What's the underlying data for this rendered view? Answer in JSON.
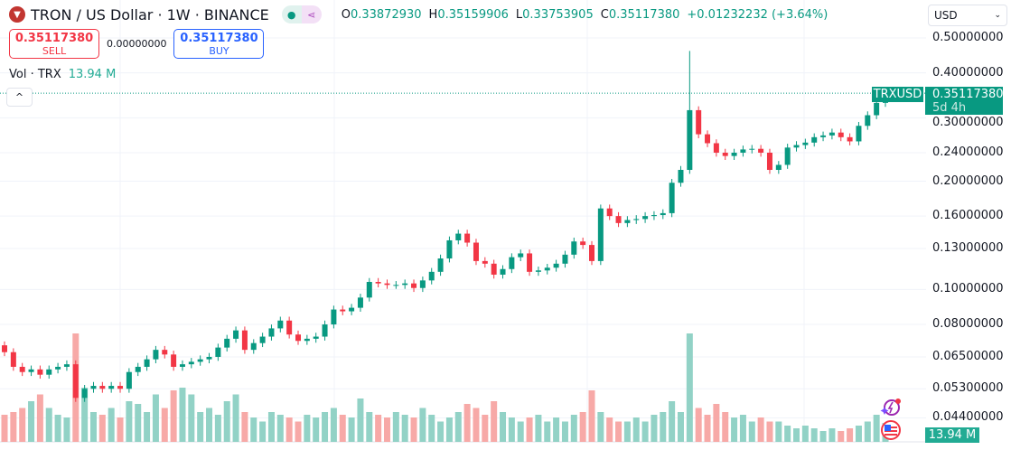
{
  "header": {
    "title": "TRON / US Dollar · 1W · BINANCE",
    "logo_icon": "tron-logo",
    "ohlc": {
      "o_label": "O",
      "o": "0.33872930",
      "h_label": "H",
      "h": "0.35159906",
      "l_label": "L",
      "l": "0.33753905",
      "c_label": "C",
      "c": "0.35117380",
      "change": "+0.01232232 (+3.64%)"
    }
  },
  "trade": {
    "sell_price": "0.35117380",
    "sell_label": "SELL",
    "spread": "0.00000000",
    "buy_price": "0.35117380",
    "buy_label": "BUY"
  },
  "volume_legend": {
    "label": "Vol · TRX",
    "value": "13.94 M"
  },
  "currency_select": {
    "value": "USD"
  },
  "price_axis": {
    "ticks": [
      "0.50000000",
      "0.40000000",
      "0.30000000",
      "0.24000000",
      "0.20000000",
      "0.16000000",
      "0.13000000",
      "0.10000000",
      "0.08000000",
      "0.06500000",
      "0.05300000",
      "0.04400000"
    ],
    "symbol_label": "TRXUSD",
    "last_price": "0.35117380",
    "countdown": "5d 4h",
    "volume_label": "13.94 M"
  },
  "colors": {
    "up": "#089981",
    "down": "#f23645",
    "vol_up": "#92d2c6",
    "vol_down": "#f7a9a7",
    "grid": "#f0f3fa"
  },
  "chart_data": {
    "type": "candlestick",
    "scale": "log",
    "ylim": [
      0.04,
      0.52
    ],
    "grid": true,
    "close": [
      0.067,
      0.061,
      0.059,
      0.06,
      0.058,
      0.06,
      0.061,
      0.062,
      0.05,
      0.053,
      0.054,
      0.053,
      0.054,
      0.053,
      0.059,
      0.061,
      0.064,
      0.068,
      0.066,
      0.061,
      0.062,
      0.063,
      0.064,
      0.065,
      0.069,
      0.073,
      0.077,
      0.068,
      0.071,
      0.074,
      0.078,
      0.082,
      0.075,
      0.072,
      0.073,
      0.074,
      0.08,
      0.088,
      0.087,
      0.089,
      0.095,
      0.105,
      0.104,
      0.103,
      0.103,
      0.104,
      0.101,
      0.106,
      0.112,
      0.122,
      0.137,
      0.143,
      0.135,
      0.12,
      0.118,
      0.11,
      0.114,
      0.123,
      0.126,
      0.112,
      0.113,
      0.115,
      0.118,
      0.125,
      0.136,
      0.133,
      0.12,
      0.168,
      0.16,
      0.153,
      0.156,
      0.157,
      0.16,
      0.161,
      0.163,
      0.198,
      0.215,
      0.315,
      0.27,
      0.255,
      0.24,
      0.235,
      0.24,
      0.245,
      0.246,
      0.24,
      0.215,
      0.222,
      0.248,
      0.252,
      0.256,
      0.265,
      0.268,
      0.273,
      0.265,
      0.258,
      0.285,
      0.305,
      0.33,
      0.3512
    ],
    "first_open": 0.07,
    "notable_high": {
      "index": 77,
      "value": 0.46
    },
    "volume_millions": [
      20,
      22,
      25,
      30,
      35,
      25,
      20,
      18,
      80,
      40,
      22,
      20,
      25,
      18,
      30,
      28,
      22,
      35,
      25,
      38,
      40,
      35,
      22,
      25,
      20,
      30,
      35,
      22,
      18,
      15,
      22,
      20,
      18,
      15,
      20,
      18,
      22,
      25,
      20,
      18,
      32,
      22,
      20,
      18,
      22,
      20,
      18,
      25,
      20,
      15,
      18,
      22,
      28,
      25,
      20,
      30,
      22,
      18,
      15,
      18,
      20,
      15,
      18,
      15,
      20,
      22,
      38,
      22,
      18,
      15,
      15,
      18,
      15,
      20,
      22,
      30,
      22,
      80,
      25,
      20,
      28,
      22,
      18,
      20,
      15,
      18,
      15,
      15,
      12,
      10,
      12,
      10,
      8,
      10,
      8,
      10,
      12,
      15,
      20,
      13.94
    ]
  }
}
